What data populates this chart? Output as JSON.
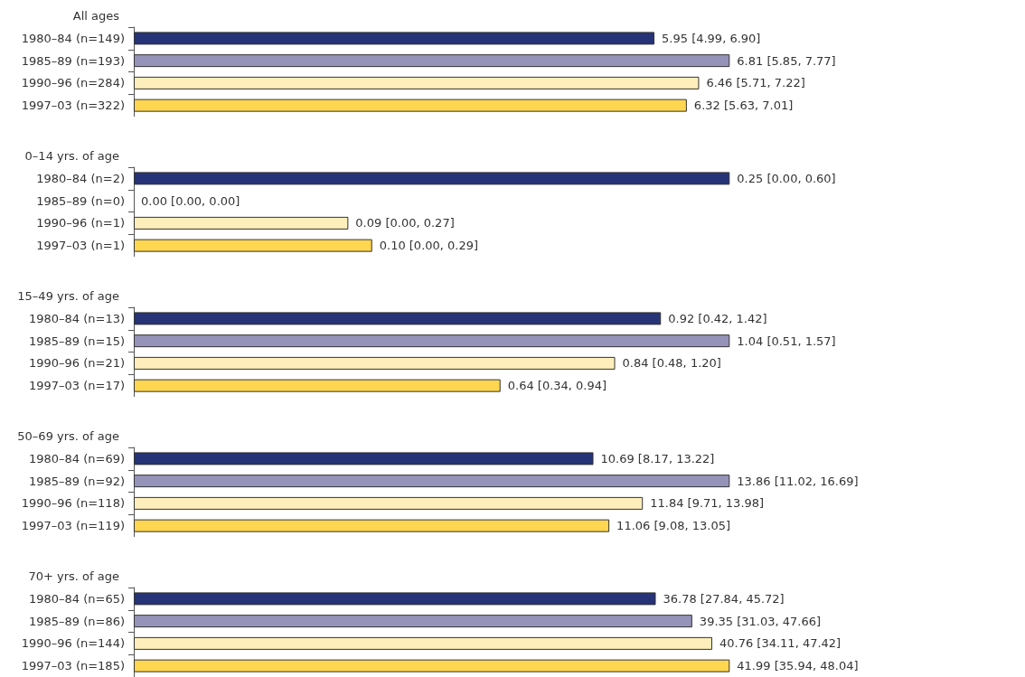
{
  "chart_data": [
    {
      "type": "bar",
      "orientation": "horizontal",
      "title": "All ages",
      "categories": [
        "1980–84 (n=149)",
        "1985–89 (n=193)",
        "1990–96 (n=284)",
        "1997–03 (n=322)"
      ],
      "values": [
        5.95,
        6.81,
        6.46,
        6.32
      ],
      "value_labels": [
        "5.95 [4.99, 6.90]",
        "6.81 [5.85, 7.77]",
        "6.46 [5.71, 7.22]",
        "6.32 [5.63, 7.01]"
      ],
      "colors": [
        "#263377",
        "#9593ba",
        "#feeebb",
        "#fed64f"
      ],
      "tick_labels": "y"
    },
    {
      "type": "bar",
      "orientation": "horizontal",
      "title": "0–14 yrs. of age",
      "categories": [
        "1980–84 (n=2)",
        "1985–89 (n=0)",
        "1990–96 (n=1)",
        "1997–03 (n=1)"
      ],
      "values": [
        0.25,
        0.0,
        0.09,
        0.1
      ],
      "value_labels": [
        "0.25 [0.00, 0.60]",
        "0.00 [0.00, 0.00]",
        "0.09 [0.00, 0.27]",
        "0.10 [0.00, 0.29]"
      ],
      "colors": [
        "#263377",
        "#9593ba",
        "#feeebb",
        "#fed64f"
      ],
      "tick_labels": "y"
    },
    {
      "type": "bar",
      "orientation": "horizontal",
      "title": "15–49 yrs. of age",
      "categories": [
        "1980–84 (n=13)",
        "1985–89 (n=15)",
        "1990–96 (n=21)",
        "1997–03 (n=17)"
      ],
      "values": [
        0.92,
        1.04,
        0.84,
        0.64
      ],
      "value_labels": [
        "0.92 [0.42, 1.42]",
        "1.04 [0.51, 1.57]",
        "0.84 [0.48, 1.20]",
        "0.64 [0.34, 0.94]"
      ],
      "colors": [
        "#263377",
        "#9593ba",
        "#feeebb",
        "#fed64f"
      ],
      "tick_labels": "y"
    },
    {
      "type": "bar",
      "orientation": "horizontal",
      "title": "50–69 yrs. of age",
      "categories": [
        "1980–84 (n=69)",
        "1985–89 (n=92)",
        "1990–96 (n=118)",
        "1997–03 (n=119)"
      ],
      "values": [
        10.69,
        13.86,
        11.84,
        11.06
      ],
      "value_labels": [
        "10.69 [8.17, 13.22]",
        "13.86 [11.02, 16.69]",
        "11.84 [9.71, 13.98]",
        "11.06 [9.08, 13.05]"
      ],
      "colors": [
        "#263377",
        "#9593ba",
        "#feeebb",
        "#fed64f"
      ],
      "tick_labels": "y"
    },
    {
      "type": "bar",
      "orientation": "horizontal",
      "title": "70+ yrs. of age",
      "categories": [
        "1980–84 (n=65)",
        "1985–89 (n=86)",
        "1990–96 (n=144)",
        "1997–03 (n=185)"
      ],
      "values": [
        36.78,
        39.35,
        40.76,
        41.99
      ],
      "value_labels": [
        "36.78 [27.84, 45.72]",
        "39.35 [31.03, 47.66]",
        "40.76 [34.11, 47.42]",
        "41.99 [35.94, 48.04]"
      ],
      "colors": [
        "#263377",
        "#9593ba",
        "#feeebb",
        "#fed64f"
      ],
      "tick_labels": "y"
    }
  ]
}
